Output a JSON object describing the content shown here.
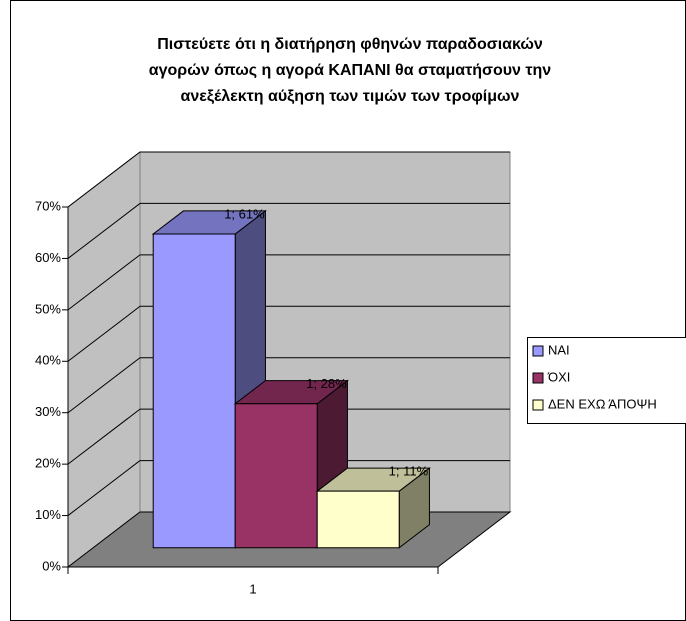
{
  "chart_data": {
    "type": "bar3d",
    "title": [
      "Πιστεύετε ότι η διατήρηση φθηνών παραδοσιακών",
      "αγορών όπως η  αγορά ΚΑΠΑΝΙ θα σταματήσουν την",
      "ανεξέλεκτη αύξηση των τιμών των τροφίμων"
    ],
    "categories": [
      "1"
    ],
    "series": [
      {
        "name": "ΝΑΙ",
        "color": "#9999ff",
        "values": [
          61
        ],
        "value_labels": [
          "1; 61%"
        ]
      },
      {
        "name": "ΌΧΙ",
        "color": "#993366",
        "values": [
          28
        ],
        "value_labels": [
          "1; 28%"
        ]
      },
      {
        "name": "ΔΕΝ ΕΧΩ ΆΠΟΨΗ",
        "color": "#ffffcc",
        "values": [
          11
        ],
        "value_labels": [
          "1; 11%"
        ]
      }
    ],
    "ylim": [
      0,
      70
    ],
    "yticks": [
      {
        "value": 0,
        "label": "0%"
      },
      {
        "value": 10,
        "label": "10%"
      },
      {
        "value": 20,
        "label": "20%"
      },
      {
        "value": 30,
        "label": "30%"
      },
      {
        "value": 40,
        "label": "40%"
      },
      {
        "value": 50,
        "label": "50%"
      },
      {
        "value": 60,
        "label": "60%"
      },
      {
        "value": 70,
        "label": "70%"
      }
    ],
    "grid": true,
    "legend": "right"
  }
}
